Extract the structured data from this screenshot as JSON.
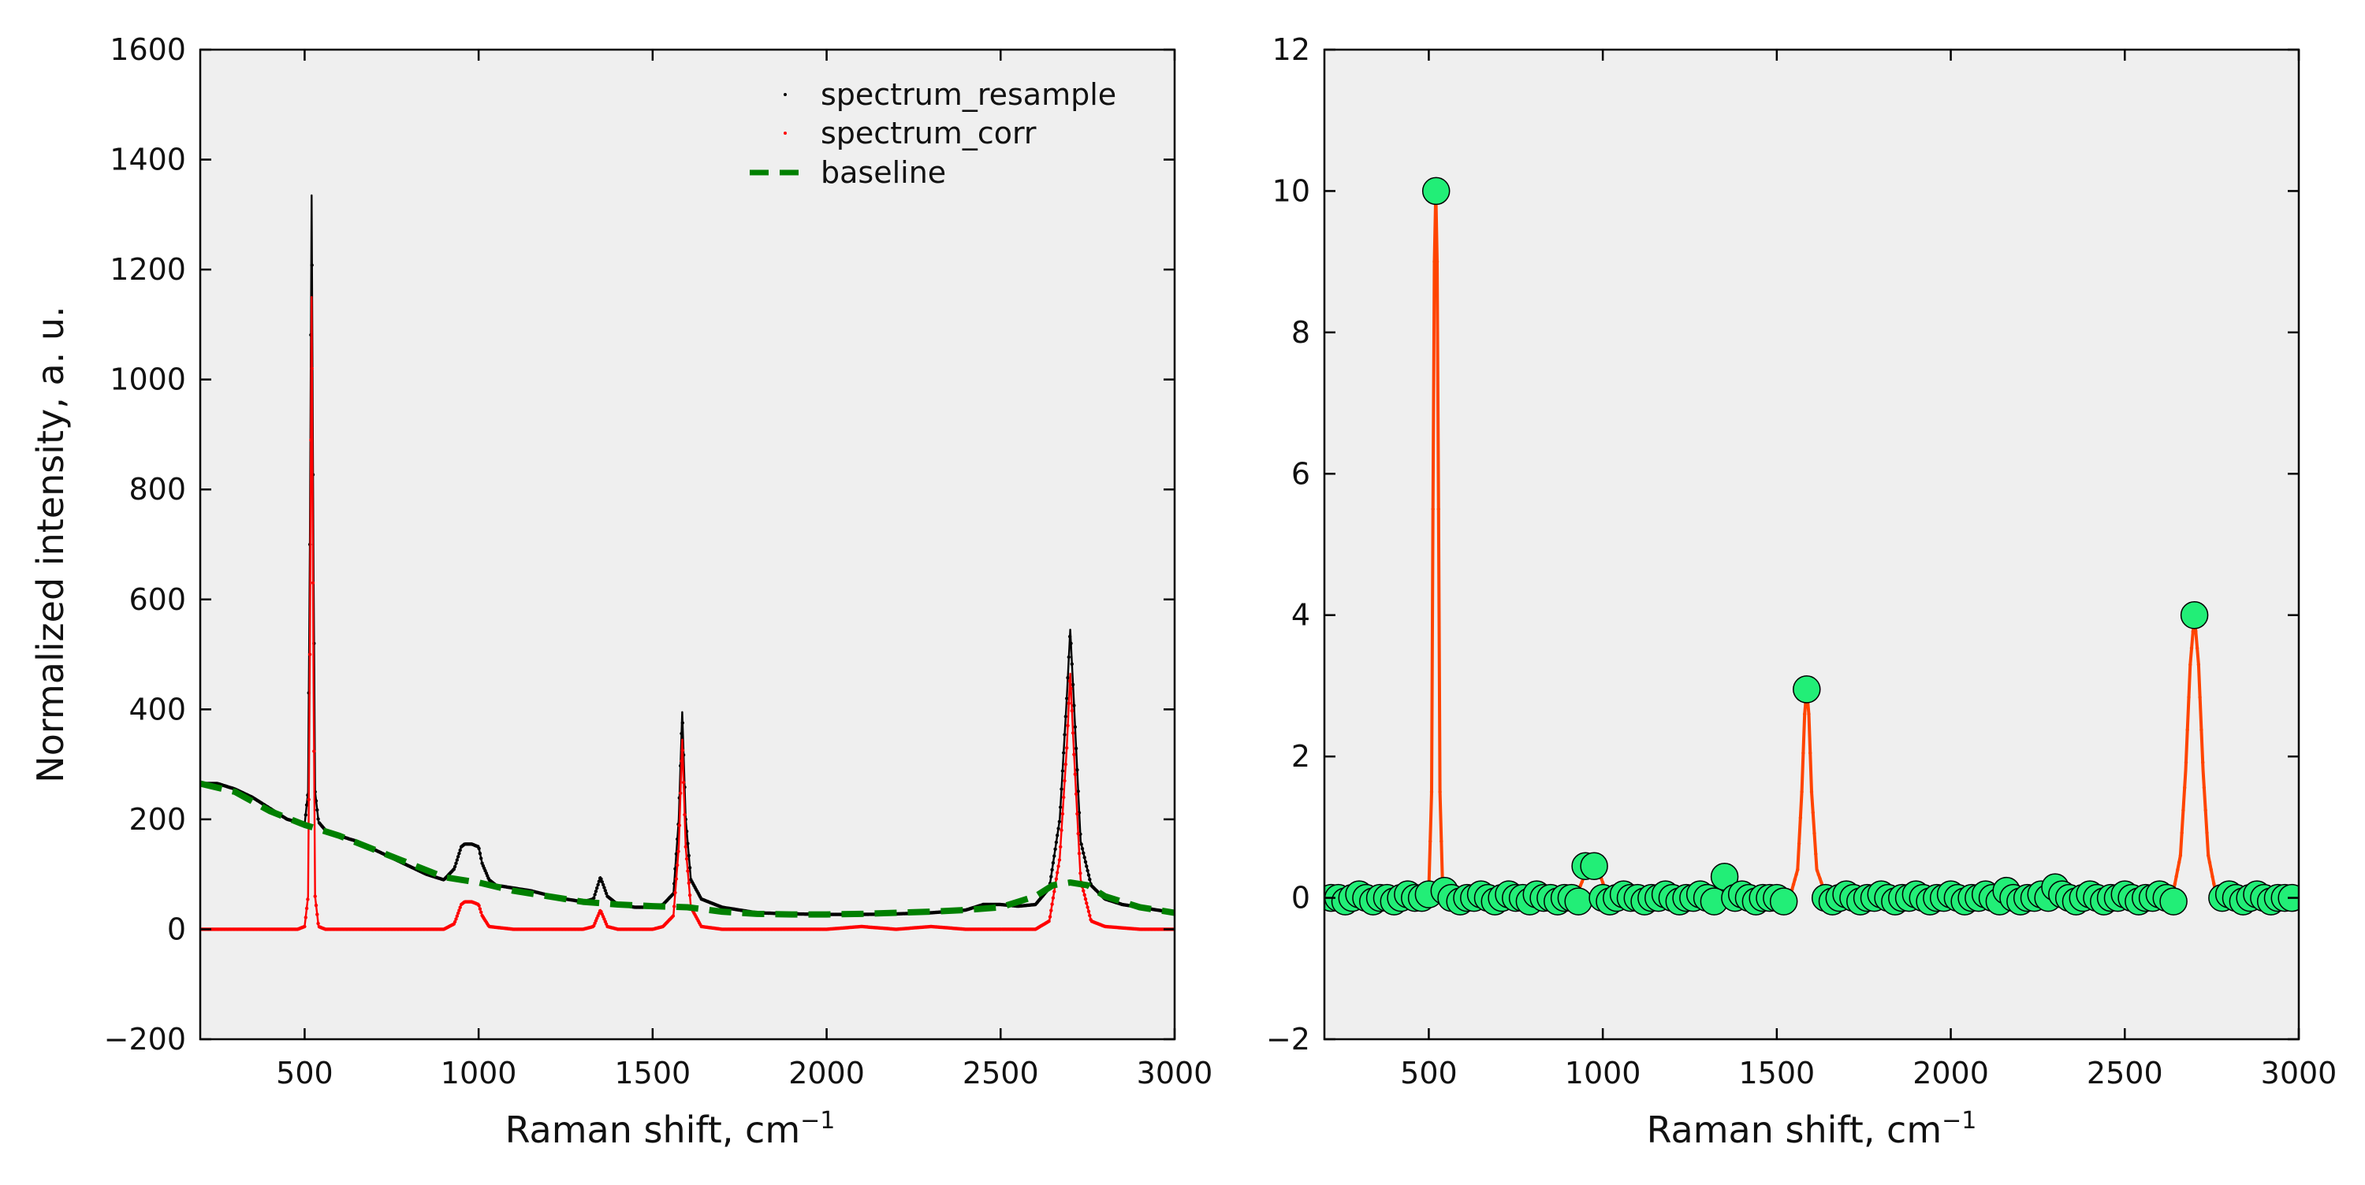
{
  "chart_data": [
    {
      "type": "line",
      "xlabel": "Raman shift, cm",
      "xlabel_sup": "−1",
      "ylabel": "Normalized intensity, a. u.",
      "xlim": [
        200,
        3000
      ],
      "ylim": [
        -200,
        1600
      ],
      "xticks": [
        500,
        1000,
        1500,
        2000,
        2500,
        3000
      ],
      "yticks": [
        -200,
        0,
        200,
        400,
        600,
        800,
        1000,
        1200,
        1400,
        1600
      ],
      "ytick_labels": [
        "−200",
        "0",
        "200",
        "400",
        "600",
        "800",
        "1000",
        "1200",
        "1400",
        "1600"
      ],
      "legend_position": "top-right",
      "background": "#efefef",
      "series": [
        {
          "name": "spectrum_resample",
          "style": "dots",
          "color": "#000000",
          "x": [
            200,
            250,
            300,
            350,
            400,
            450,
            480,
            500,
            510,
            515,
            520,
            525,
            530,
            540,
            560,
            600,
            650,
            700,
            750,
            800,
            850,
            900,
            930,
            950,
            960,
            980,
            1000,
            1010,
            1030,
            1050,
            1100,
            1150,
            1200,
            1250,
            1300,
            1330,
            1350,
            1370,
            1400,
            1450,
            1500,
            1530,
            1560,
            1575,
            1585,
            1595,
            1610,
            1640,
            1700,
            1800,
            1900,
            2000,
            2100,
            2200,
            2300,
            2400,
            2450,
            2500,
            2550,
            2600,
            2640,
            2670,
            2690,
            2700,
            2710,
            2730,
            2760,
            2800,
            2850,
            2900,
            2950,
            3000
          ],
          "y": [
            265,
            265,
            255,
            240,
            220,
            200,
            195,
            190,
            250,
            700,
            1335,
            700,
            250,
            195,
            180,
            170,
            160,
            145,
            130,
            115,
            100,
            90,
            110,
            150,
            155,
            155,
            150,
            120,
            90,
            80,
            75,
            70,
            62,
            55,
            50,
            55,
            95,
            60,
            45,
            40,
            40,
            45,
            65,
            200,
            395,
            200,
            90,
            55,
            40,
            30,
            28,
            27,
            27,
            28,
            30,
            35,
            45,
            45,
            42,
            45,
            75,
            200,
            420,
            545,
            420,
            160,
            80,
            55,
            45,
            40,
            35,
            30
          ]
        },
        {
          "name": "spectrum_corr",
          "style": "dots",
          "color": "#ff0000",
          "x": [
            200,
            300,
            400,
            480,
            500,
            510,
            515,
            520,
            525,
            530,
            540,
            560,
            600,
            700,
            800,
            900,
            930,
            950,
            960,
            980,
            1000,
            1010,
            1030,
            1100,
            1200,
            1300,
            1330,
            1350,
            1370,
            1400,
            1500,
            1530,
            1560,
            1575,
            1585,
            1595,
            1610,
            1640,
            1700,
            1800,
            2000,
            2100,
            2200,
            2300,
            2400,
            2500,
            2600,
            2640,
            2670,
            2690,
            2700,
            2710,
            2730,
            2760,
            2800,
            2900,
            3000
          ],
          "y": [
            0,
            0,
            0,
            0,
            5,
            60,
            500,
            1150,
            500,
            60,
            5,
            0,
            0,
            0,
            0,
            0,
            10,
            45,
            50,
            50,
            45,
            25,
            5,
            0,
            0,
            0,
            5,
            35,
            5,
            0,
            0,
            5,
            25,
            150,
            345,
            150,
            40,
            5,
            0,
            0,
            0,
            5,
            0,
            5,
            0,
            0,
            0,
            15,
            130,
            330,
            465,
            330,
            90,
            15,
            5,
            0,
            0
          ]
        },
        {
          "name": "baseline",
          "style": "dashed",
          "color": "#008000",
          "x": [
            200,
            300,
            400,
            500,
            600,
            700,
            800,
            900,
            1000,
            1100,
            1200,
            1300,
            1400,
            1500,
            1600,
            1700,
            1800,
            1900,
            2000,
            2100,
            2200,
            2300,
            2400,
            2500,
            2600,
            2650,
            2700,
            2750,
            2800,
            2900,
            3000
          ],
          "y": [
            265,
            250,
            215,
            190,
            170,
            145,
            120,
            95,
            85,
            70,
            60,
            50,
            45,
            42,
            40,
            32,
            28,
            27,
            27,
            28,
            30,
            32,
            35,
            40,
            60,
            80,
            85,
            80,
            60,
            40,
            30
          ]
        }
      ]
    },
    {
      "type": "line",
      "xlabel": "Raman shift, cm",
      "xlabel_sup": "−1",
      "ylabel": "",
      "xlim": [
        200,
        3000
      ],
      "ylim": [
        -2,
        12
      ],
      "xticks": [
        500,
        1000,
        1500,
        2000,
        2500,
        3000
      ],
      "yticks": [
        -2,
        0,
        2,
        4,
        6,
        8,
        10,
        12
      ],
      "ytick_labels": [
        "−2",
        "0",
        "2",
        "4",
        "6",
        "8",
        "10",
        "12"
      ],
      "background": "#efefef",
      "series": [
        {
          "style": "line",
          "color": "#ff4400",
          "x": [
            200,
            300,
            400,
            480,
            500,
            508,
            512,
            516,
            520,
            524,
            528,
            532,
            540,
            560,
            600,
            700,
            800,
            900,
            930,
            950,
            960,
            975,
            990,
            1005,
            1020,
            1100,
            1200,
            1300,
            1335,
            1350,
            1365,
            1400,
            1500,
            1540,
            1560,
            1572,
            1580,
            1586,
            1592,
            1600,
            1615,
            1640,
            1700,
            2000,
            2300,
            2600,
            2640,
            2660,
            2675,
            2688,
            2700,
            2712,
            2725,
            2740,
            2760,
            2800,
            2900,
            3000
          ],
          "y": [
            0,
            0,
            0,
            0,
            0.1,
            1.5,
            5.5,
            9.0,
            10.0,
            9.0,
            5.5,
            1.5,
            0.1,
            0,
            0,
            0,
            0,
            0,
            0.1,
            0.35,
            0.45,
            0.45,
            0.35,
            0.15,
            0.05,
            0,
            0,
            0,
            0.05,
            0.25,
            0.05,
            0,
            0,
            0.05,
            0.4,
            1.5,
            2.6,
            2.95,
            2.6,
            1.5,
            0.4,
            0.05,
            0,
            0,
            0,
            0,
            0.1,
            0.6,
            1.8,
            3.3,
            4.0,
            3.3,
            1.8,
            0.6,
            0.1,
            0,
            0,
            0
          ]
        },
        {
          "style": "markers",
          "color": "#22ee77",
          "x": [
            220,
            240,
            260,
            280,
            300,
            320,
            340,
            360,
            380,
            400,
            420,
            440,
            460,
            480,
            500,
            521,
            545,
            565,
            590,
            610,
            630,
            650,
            670,
            690,
            710,
            730,
            750,
            770,
            790,
            810,
            830,
            850,
            870,
            890,
            910,
            930,
            950,
            975,
            1000,
            1020,
            1040,
            1060,
            1080,
            1100,
            1120,
            1140,
            1160,
            1180,
            1200,
            1220,
            1240,
            1260,
            1280,
            1300,
            1320,
            1350,
            1380,
            1400,
            1420,
            1440,
            1460,
            1480,
            1500,
            1520,
            1586,
            1640,
            1660,
            1680,
            1700,
            1720,
            1740,
            1760,
            1780,
            1800,
            1820,
            1840,
            1860,
            1880,
            1900,
            1920,
            1940,
            1960,
            1980,
            2000,
            2020,
            2040,
            2060,
            2080,
            2100,
            2120,
            2140,
            2160,
            2180,
            2200,
            2220,
            2240,
            2260,
            2280,
            2300,
            2320,
            2340,
            2360,
            2380,
            2400,
            2420,
            2440,
            2460,
            2480,
            2500,
            2520,
            2540,
            2560,
            2580,
            2600,
            2620,
            2640,
            2700,
            2780,
            2800,
            2820,
            2840,
            2860,
            2880,
            2900,
            2920,
            2940,
            2960,
            2980
          ],
          "y": [
            0.0,
            0.0,
            -0.05,
            0.0,
            0.05,
            0.0,
            -0.05,
            0.0,
            0.0,
            -0.05,
            0.0,
            0.05,
            0.0,
            0.0,
            0.05,
            10.0,
            0.1,
            0.0,
            -0.05,
            0.0,
            0.0,
            0.05,
            0.0,
            -0.05,
            0.0,
            0.05,
            0.0,
            0.0,
            -0.05,
            0.05,
            0.0,
            0.0,
            -0.05,
            0.0,
            0.0,
            -0.05,
            0.45,
            0.45,
            0.0,
            -0.05,
            0.0,
            0.05,
            0.0,
            0.0,
            -0.05,
            0.0,
            0.0,
            0.05,
            0.0,
            -0.05,
            0.0,
            0.0,
            0.05,
            0.0,
            -0.05,
            0.3,
            0.0,
            0.05,
            0.0,
            -0.05,
            0.0,
            0.0,
            0.0,
            -0.05,
            2.95,
            0.0,
            -0.05,
            0.0,
            0.05,
            0.0,
            -0.05,
            0.0,
            0.0,
            0.05,
            0.0,
            -0.05,
            0.0,
            0.0,
            0.05,
            0.0,
            -0.05,
            0.0,
            0.0,
            0.05,
            0.0,
            -0.05,
            0.0,
            0.0,
            0.05,
            0.0,
            -0.05,
            0.1,
            0.0,
            -0.05,
            0.0,
            0.0,
            0.05,
            0.0,
            0.15,
            0.05,
            0.0,
            -0.05,
            0.0,
            0.05,
            0.0,
            -0.05,
            0.0,
            0.0,
            0.05,
            0.0,
            -0.05,
            0.0,
            0.0,
            0.05,
            0.0,
            -0.05,
            4.0,
            0.0,
            0.05,
            0.0,
            -0.05,
            0.0,
            0.05,
            0.0,
            -0.05,
            0.0,
            0.0,
            0.0
          ]
        }
      ]
    }
  ]
}
